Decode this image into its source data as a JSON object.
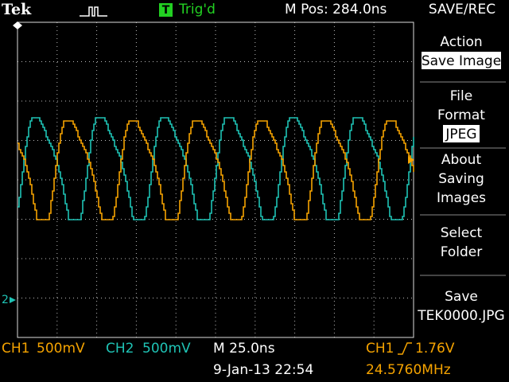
{
  "header": {
    "brand": "Tek",
    "trigger_badge": "T",
    "trigger_status": "Trig'd",
    "position": "M Pos: 284.0ns",
    "menu_title": "SAVE/REC"
  },
  "menu": [
    {
      "lines": [
        "Action"
      ],
      "selected": "Save Image"
    },
    {
      "lines": [
        "File",
        "Format"
      ],
      "selected": "JPEG"
    },
    {
      "lines": [
        "About",
        "Saving",
        "Images"
      ]
    },
    {
      "lines": [
        "Select",
        "Folder"
      ]
    },
    {
      "lines": [
        "Save",
        "TEK0000.JPG"
      ]
    }
  ],
  "markers": {
    "ch2": "2"
  },
  "footer": {
    "ch1": {
      "name": "CH1",
      "scale": "500mV"
    },
    "ch2": {
      "name": "CH2",
      "scale": "500mV"
    },
    "timebase": "M 25.0ns",
    "trigger": {
      "source": "CH1",
      "level": "1.76V"
    },
    "date": "9-Jan-13 22:54",
    "frequency": "24.5760MHz"
  }
}
